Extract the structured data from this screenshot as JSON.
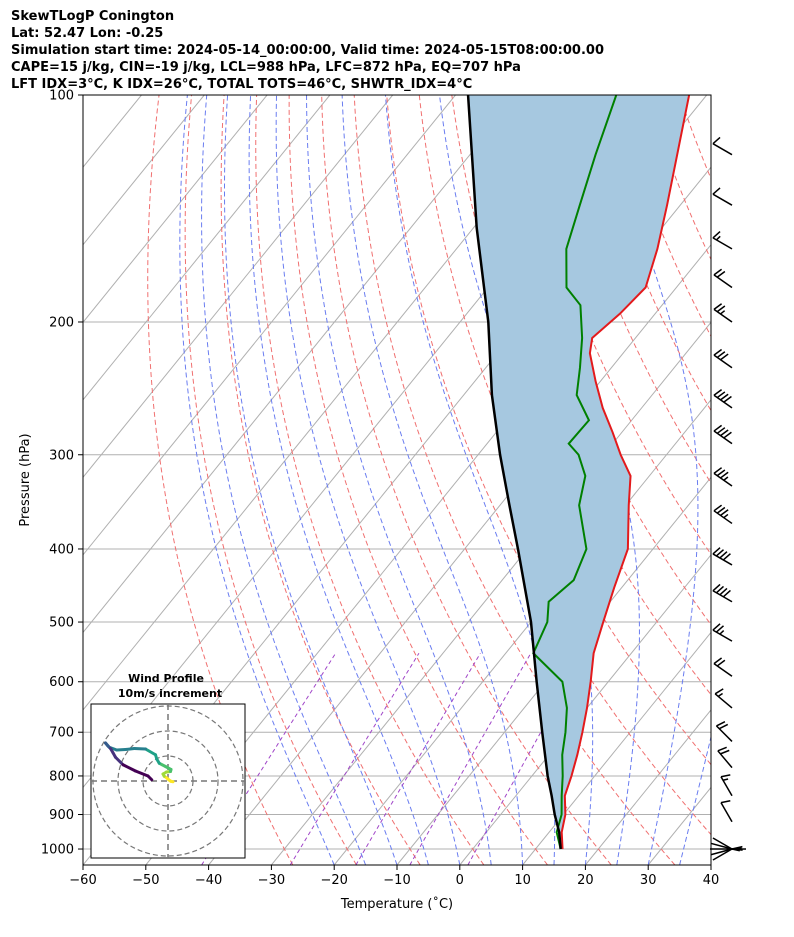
{
  "header": {
    "line1": "SkewTLogP Conington",
    "line2": "Lat: 52.47   Lon: -0.25",
    "line3": "Simulation start time: 2024-05-14_00:00:00, Valid time: 2024-05-15T08:00:00.00",
    "line4": "CAPE=15 j/kg, CIN=-19 j/kg, LCL=988 hPa, LFC=872 hPa, EQ=707 hPa",
    "line5": "LFT IDX=3°C, K IDX=26°C, TOTAL TOTS=46°C, SHWTR_IDX=4°C"
  },
  "chart_data": [
    {
      "type": "line",
      "subtype": "skew-t log-p",
      "xlabel": "Temperature (˚C)",
      "ylabel": "Pressure (hPa)",
      "xlim": [
        -60,
        40
      ],
      "ylim": [
        1050,
        100
      ],
      "y_scale": "log",
      "x_ticks": [
        -60,
        -50,
        -40,
        -30,
        -20,
        -10,
        0,
        10,
        20,
        30,
        40
      ],
      "y_ticks": [
        1000,
        900,
        800,
        700,
        600,
        500,
        400,
        300,
        200,
        100
      ],
      "grid": true,
      "reference_lines": [
        "dry adiabats (red dashed)",
        "moist adiabats (blue dashed)",
        "mixing ratio lines (purple dashed)",
        "isotherms (grey)"
      ],
      "colors": {
        "temperature": "#e31a1c",
        "dewpoint": "#008000",
        "parcel": "#000000",
        "cape_fill": "#a6c8e0",
        "dry_adiabat": "#f07070",
        "moist_adiabat": "#6a7df0",
        "mixing_ratio": "#a045c8",
        "isotherm": "#b0b0b0"
      },
      "series": [
        {
          "role": "temperature",
          "points": [
            [
              1000,
              14.3
            ],
            [
              950,
              12.0
            ],
            [
              900,
              10.3
            ],
            [
              850,
              7.8
            ],
            [
              800,
              6.3
            ],
            [
              750,
              4.5
            ],
            [
              700,
              2.4
            ],
            [
              650,
              0.0
            ],
            [
              600,
              -2.8
            ],
            [
              550,
              -6.0
            ],
            [
              500,
              -8.5
            ],
            [
              450,
              -11.2
            ],
            [
              400,
              -14.0
            ],
            [
              350,
              -19.5
            ],
            [
              320,
              -23.0
            ],
            [
              300,
              -27.3
            ],
            [
              280,
              -31.5
            ],
            [
              260,
              -36.2
            ],
            [
              240,
              -40.7
            ],
            [
              220,
              -45.3
            ],
            [
              210,
              -46.9
            ],
            [
              195,
              -45.6
            ],
            [
              180,
              -44.9
            ],
            [
              160,
              -48.0
            ],
            [
              140,
              -52.1
            ],
            [
              120,
              -57.0
            ],
            [
              100,
              -62.8
            ]
          ]
        },
        {
          "role": "dewpoint",
          "points": [
            [
              1000,
              14.0
            ],
            [
              950,
              11.2
            ],
            [
              900,
              9.7
            ],
            [
              850,
              7.3
            ],
            [
              800,
              4.9
            ],
            [
              750,
              2.1
            ],
            [
              700,
              -0.3
            ],
            [
              650,
              -3.2
            ],
            [
              600,
              -7.3
            ],
            [
              550,
              -15.6
            ],
            [
              500,
              -17.4
            ],
            [
              470,
              -19.8
            ],
            [
              440,
              -18.6
            ],
            [
              400,
              -20.6
            ],
            [
              350,
              -27.4
            ],
            [
              320,
              -30.2
            ],
            [
              300,
              -34.0
            ],
            [
              290,
              -37.0
            ],
            [
              270,
              -36.8
            ],
            [
              250,
              -42.0
            ],
            [
              230,
              -45.0
            ],
            [
              210,
              -48.5
            ],
            [
              190,
              -53.0
            ],
            [
              180,
              -57.5
            ],
            [
              160,
              -62.5
            ],
            [
              140,
              -66.0
            ],
            [
              120,
              -70.0
            ],
            [
              100,
              -74.4
            ]
          ]
        },
        {
          "role": "parcel",
          "points": [
            [
              1000,
              14.0
            ],
            [
              950,
              11.6
            ],
            [
              900,
              8.6
            ],
            [
              850,
              5.7
            ],
            [
              800,
              2.5
            ],
            [
              700,
              -4.0
            ],
            [
              600,
              -11.4
            ],
            [
              500,
              -20.0
            ],
            [
              400,
              -31.5
            ],
            [
              350,
              -38.5
            ],
            [
              300,
              -46.5
            ],
            [
              250,
              -55.5
            ],
            [
              200,
              -65.5
            ],
            [
              150,
              -79.5
            ],
            [
              100,
              -98.0
            ]
          ]
        }
      ]
    },
    {
      "type": "line",
      "subtype": "hodograph",
      "title": "Wind Profile",
      "subtitle": "10m/s increment",
      "rings_ms": [
        10,
        20,
        30
      ],
      "colormap": "viridis",
      "grid": true,
      "points": [
        [
          1000,
          2.0,
          -0.3
        ],
        [
          975,
          1.1,
          -0.1
        ],
        [
          950,
          0.3,
          0.5
        ],
        [
          925,
          -0.6,
          1.3
        ],
        [
          900,
          -1.5,
          1.9
        ],
        [
          875,
          -2.0,
          2.8
        ],
        [
          850,
          -0.6,
          3.6
        ],
        [
          825,
          1.0,
          3.8
        ],
        [
          800,
          1.2,
          4.6
        ],
        [
          775,
          -1.0,
          5.8
        ],
        [
          750,
          -3.5,
          7.1
        ],
        [
          725,
          -4.5,
          8.8
        ],
        [
          700,
          -5.0,
          10.5
        ],
        [
          650,
          -9.0,
          12.8
        ],
        [
          600,
          -13.5,
          13.0
        ],
        [
          550,
          -17.0,
          12.6
        ],
        [
          500,
          -20.5,
          12.4
        ],
        [
          450,
          -23.5,
          13.5
        ],
        [
          400,
          -25.0,
          15.2
        ],
        [
          350,
          -24.0,
          14.0
        ],
        [
          300,
          -23.0,
          13.0
        ],
        [
          250,
          -22.0,
          11.3
        ],
        [
          220,
          -21.0,
          9.5
        ],
        [
          200,
          -18.0,
          6.5
        ],
        [
          180,
          -13.0,
          4.0
        ],
        [
          160,
          -8.0,
          2.0
        ],
        [
          140,
          -6.5,
          0.5
        ]
      ]
    }
  ],
  "wind_barbs": [
    {
      "pressure": 1000,
      "barbs": [
        [
          1000,
          -44,
          0.5
        ],
        [
          990,
          -42,
          1.5
        ],
        [
          975,
          -40,
          3
        ],
        [
          960,
          -36,
          2
        ],
        [
          950,
          -32,
          3
        ]
      ]
    },
    {
      "pressure": 920,
      "speed_kt": 14,
      "dir": 330
    },
    {
      "pressure": 850,
      "speed_kt": 17,
      "dir": 330
    },
    {
      "pressure": 780,
      "speed_kt": 22,
      "dir": 320
    },
    {
      "pressure": 720,
      "speed_kt": 20,
      "dir": 315
    },
    {
      "pressure": 650,
      "speed_kt": 18,
      "dir": 310
    },
    {
      "pressure": 590,
      "speed_kt": 22,
      "dir": 305
    },
    {
      "pressure": 530,
      "speed_kt": 25,
      "dir": 300
    },
    {
      "pressure": 470,
      "speed_kt": 40,
      "dir": 300
    },
    {
      "pressure": 420,
      "speed_kt": 40,
      "dir": 300
    },
    {
      "pressure": 370,
      "speed_kt": 38,
      "dir": 305
    },
    {
      "pressure": 330,
      "speed_kt": 35,
      "dir": 305
    },
    {
      "pressure": 290,
      "speed_kt": 40,
      "dir": 305
    },
    {
      "pressure": 260,
      "speed_kt": 40,
      "dir": 305
    },
    {
      "pressure": 230,
      "speed_kt": 30,
      "dir": 305
    },
    {
      "pressure": 200,
      "speed_kt": 25,
      "dir": 305
    },
    {
      "pressure": 180,
      "speed_kt": 20,
      "dir": 305
    },
    {
      "pressure": 160,
      "speed_kt": 15,
      "dir": 300
    },
    {
      "pressure": 140,
      "speed_kt": 10,
      "dir": 300
    },
    {
      "pressure": 120,
      "speed_kt": 10,
      "dir": 300
    }
  ]
}
